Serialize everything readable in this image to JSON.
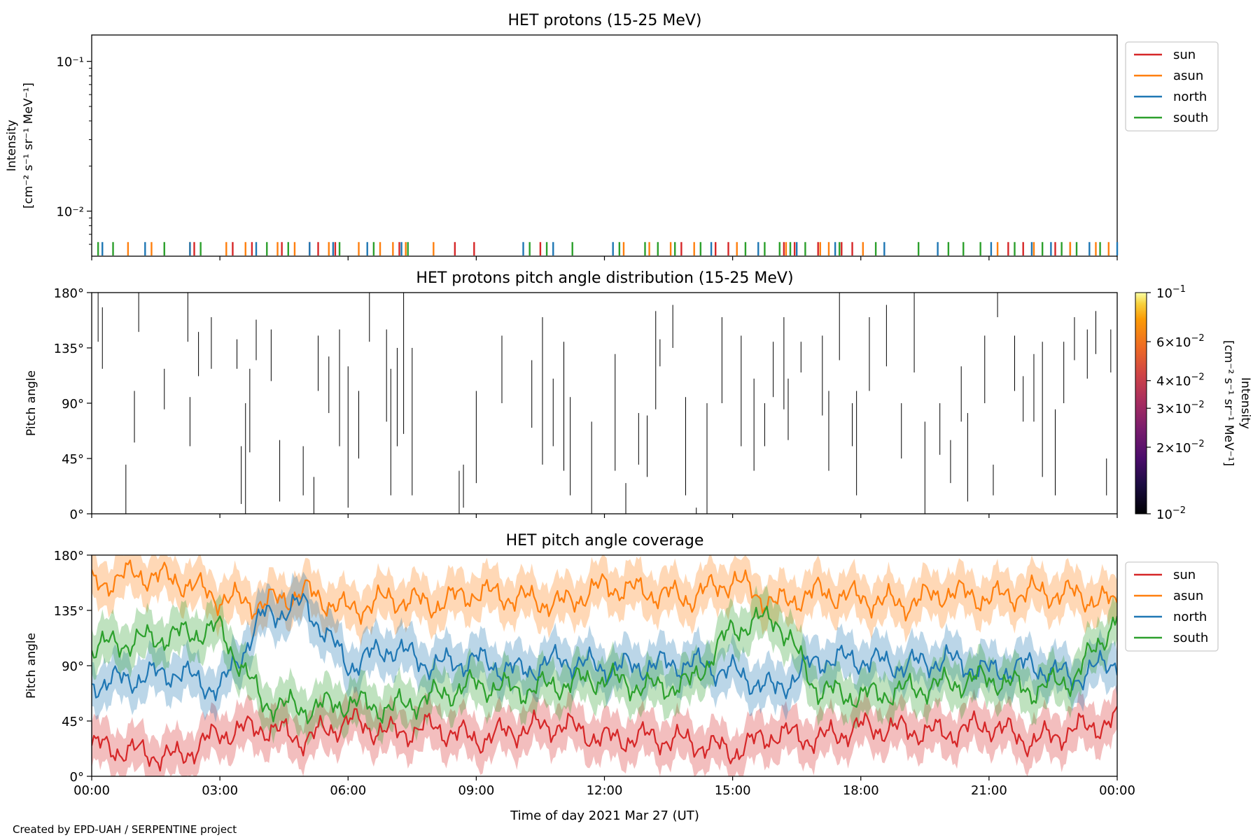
{
  "footer": "Created by EPD-UAH / SERPENTINE project",
  "chart_data": [
    {
      "type": "line",
      "title": "HET protons (15-25 MeV)",
      "ylabel": "Intensity",
      "ylabel2": "[cm⁻² s⁻¹ sr⁻¹ MeV⁻¹]",
      "yscale": "log",
      "ylim": [
        0.005,
        0.15
      ],
      "yticks": [
        "10⁻¹",
        "10⁻²"
      ],
      "ytick_values": [
        0.1,
        0.01
      ],
      "legend_position": "outside-right-top",
      "series": [
        {
          "name": "sun",
          "color": "#d62728",
          "marker_y": 0.0057,
          "x_hours": [
            2.4,
            3.3,
            3.75,
            4.45,
            5.1,
            5.3,
            5.7,
            7.2,
            8.5,
            8.95,
            10.5,
            13.8,
            14.6,
            14.9,
            16.2,
            16.45,
            17.0,
            17.55,
            17.8,
            21.45,
            21.8,
            22.55,
            22.9
          ]
        },
        {
          "name": "asun",
          "color": "#ff7f0e",
          "marker_y": 0.0057,
          "x_hours": [
            0.85,
            1.4,
            2.3,
            3.15,
            3.6,
            4.35,
            4.75,
            5.55,
            6.25,
            6.75,
            7.05,
            7.35,
            8.0,
            12.45,
            13.05,
            13.55,
            14.1,
            15.1,
            16.25,
            17.05,
            17.25,
            18.05,
            21.2,
            22.05,
            22.9,
            23.5,
            23.8
          ]
        },
        {
          "name": "north",
          "color": "#1f77b4",
          "marker_y": 0.0057,
          "x_hours": [
            0.25,
            1.25,
            2.3,
            3.85,
            5.1,
            5.65,
            6.45,
            7.25,
            10.1,
            10.8,
            12.2,
            14.5,
            15.6,
            16.5,
            17.4,
            18.55,
            19.8,
            21.05,
            22.0,
            22.45,
            23.35,
            24.0
          ]
        },
        {
          "name": "south",
          "color": "#2ca02c",
          "marker_y": 0.0057,
          "x_hours": [
            0.15,
            0.5,
            1.7,
            2.55,
            4.1,
            4.6,
            5.8,
            6.6,
            7.4,
            10.25,
            10.65,
            11.25,
            12.35,
            12.95,
            13.25,
            13.65,
            14.25,
            15.3,
            15.75,
            16.1,
            16.35,
            16.7,
            17.5,
            18.35,
            19.35,
            20.05,
            20.4,
            20.8,
            21.6,
            22.25,
            22.7,
            23.05,
            23.6
          ]
        }
      ]
    },
    {
      "type": "heatmap",
      "title": "HET protons pitch angle distribution (15-25 MeV)",
      "ylabel": "Pitch angle",
      "ylim": [
        0,
        180
      ],
      "yticks": [
        "0°",
        "45°",
        "90°",
        "135°",
        "180°"
      ],
      "ytick_values": [
        0,
        45,
        90,
        135,
        180
      ],
      "colorbar": {
        "colormap": "inferno",
        "scale": "log",
        "range": [
          0.01,
          0.1
        ],
        "label": "Intensity",
        "label2": "[cm⁻² s⁻¹ sr⁻¹ MeV⁻¹]",
        "ticks": [
          {
            "value": 0.1,
            "mant": "",
            "exp": "−1"
          },
          {
            "value": 0.06,
            "mant": "6",
            "exp": "−2"
          },
          {
            "value": 0.04,
            "mant": "4",
            "exp": "−2"
          },
          {
            "value": 0.03,
            "mant": "3",
            "exp": "−2"
          },
          {
            "value": 0.02,
            "mant": "2",
            "exp": "−2"
          },
          {
            "value": 0.01,
            "mant": "",
            "exp": "−2"
          }
        ]
      },
      "segments_note": "x in hours of day, y0/y1 pitch angle in degrees",
      "segments": [
        [
          0.15,
          180,
          140
        ],
        [
          0.25,
          168,
          118
        ],
        [
          0.8,
          40,
          0
        ],
        [
          1.0,
          100,
          58
        ],
        [
          1.1,
          180,
          148
        ],
        [
          1.7,
          118,
          85
        ],
        [
          2.25,
          180,
          140
        ],
        [
          2.3,
          95,
          55
        ],
        [
          2.5,
          148,
          112
        ],
        [
          2.8,
          160,
          118
        ],
        [
          3.4,
          142,
          118
        ],
        [
          3.5,
          55,
          8
        ],
        [
          3.6,
          90,
          0
        ],
        [
          3.7,
          118,
          50
        ],
        [
          3.85,
          158,
          125
        ],
        [
          4.2,
          150,
          108
        ],
        [
          4.4,
          60,
          10
        ],
        [
          4.95,
          55,
          15
        ],
        [
          5.2,
          30,
          0
        ],
        [
          5.3,
          145,
          100
        ],
        [
          5.55,
          128,
          82
        ],
        [
          5.8,
          150,
          55
        ],
        [
          6.0,
          120,
          5
        ],
        [
          6.25,
          100,
          45
        ],
        [
          6.5,
          180,
          140
        ],
        [
          6.9,
          150,
          75
        ],
        [
          7.0,
          118,
          15
        ],
        [
          7.15,
          135,
          55
        ],
        [
          7.3,
          180,
          65
        ],
        [
          7.5,
          135,
          15
        ],
        [
          8.6,
          35,
          0
        ],
        [
          8.7,
          40,
          5
        ],
        [
          9.0,
          100,
          25
        ],
        [
          9.6,
          145,
          90
        ],
        [
          10.3,
          125,
          70
        ],
        [
          10.55,
          160,
          40
        ],
        [
          10.8,
          110,
          55
        ],
        [
          11.05,
          140,
          35
        ],
        [
          11.2,
          95,
          15
        ],
        [
          11.7,
          75,
          0
        ],
        [
          12.25,
          130,
          35
        ],
        [
          12.5,
          25,
          0
        ],
        [
          12.8,
          82,
          40
        ],
        [
          13.0,
          80,
          30
        ],
        [
          13.2,
          165,
          85
        ],
        [
          13.3,
          142,
          120
        ],
        [
          13.6,
          170,
          135
        ],
        [
          13.9,
          95,
          15
        ],
        [
          14.15,
          5,
          0
        ],
        [
          14.4,
          90,
          0
        ],
        [
          14.75,
          160,
          90
        ],
        [
          15.2,
          145,
          55
        ],
        [
          15.5,
          110,
          35
        ],
        [
          15.75,
          90,
          55
        ],
        [
          15.95,
          140,
          95
        ],
        [
          16.2,
          160,
          85
        ],
        [
          16.3,
          110,
          60
        ],
        [
          16.6,
          140,
          115
        ],
        [
          17.1,
          145,
          80
        ],
        [
          17.25,
          100,
          35
        ],
        [
          17.5,
          180,
          125
        ],
        [
          17.8,
          90,
          55
        ],
        [
          17.9,
          100,
          15
        ],
        [
          18.2,
          160,
          100
        ],
        [
          18.6,
          170,
          120
        ],
        [
          18.95,
          90,
          45
        ],
        [
          19.25,
          180,
          115
        ],
        [
          19.5,
          75,
          0
        ],
        [
          19.85,
          90,
          48
        ],
        [
          20.1,
          60,
          25
        ],
        [
          20.35,
          120,
          75
        ],
        [
          20.5,
          82,
          10
        ],
        [
          20.9,
          145,
          90
        ],
        [
          21.1,
          40,
          15
        ],
        [
          21.2,
          180,
          160
        ],
        [
          21.6,
          145,
          100
        ],
        [
          21.8,
          112,
          75
        ],
        [
          22.05,
          130,
          75
        ],
        [
          22.25,
          140,
          30
        ],
        [
          22.55,
          85,
          15
        ],
        [
          22.75,
          140,
          90
        ],
        [
          23.0,
          160,
          125
        ],
        [
          23.3,
          150,
          110
        ],
        [
          23.5,
          165,
          130
        ],
        [
          23.75,
          45,
          15
        ],
        [
          23.85,
          150,
          115
        ],
        [
          24.0,
          175,
          140
        ]
      ]
    },
    {
      "type": "line",
      "title": "HET pitch angle coverage",
      "ylabel": "Pitch angle",
      "xlabel": "Time of day 2021 Mar 27 (UT)",
      "ylim": [
        0,
        180
      ],
      "yticks": [
        "0°",
        "45°",
        "90°",
        "135°",
        "180°"
      ],
      "ytick_values": [
        0,
        45,
        90,
        135,
        180
      ],
      "xlim_hours": [
        0,
        24
      ],
      "xticks": [
        "00:00",
        "03:00",
        "06:00",
        "09:00",
        "12:00",
        "15:00",
        "18:00",
        "21:00",
        "00:00"
      ],
      "xtick_hours": [
        0,
        3,
        6,
        9,
        12,
        15,
        18,
        21,
        24
      ],
      "band_halfwidth_deg": 18,
      "legend_position": "outside-right-top",
      "series": [
        {
          "name": "sun",
          "color": "#d62728",
          "x_hours": [
            0,
            1,
            2,
            3,
            4,
            5,
            6,
            7,
            8,
            9,
            10,
            11,
            12,
            13,
            14,
            15,
            16,
            17,
            18,
            19,
            20,
            21,
            22,
            23,
            24
          ],
          "values": [
            25,
            20,
            15,
            35,
            40,
            30,
            45,
            35,
            40,
            30,
            38,
            42,
            30,
            32,
            28,
            20,
            35,
            30,
            40,
            38,
            35,
            42,
            28,
            38,
            45
          ]
        },
        {
          "name": "asun",
          "color": "#ff7f0e",
          "x_hours": [
            0,
            1,
            2,
            3,
            4,
            5,
            6,
            7,
            8,
            9,
            10,
            11,
            12,
            13,
            14,
            15,
            16,
            17,
            18,
            19,
            20,
            21,
            22,
            23,
            24
          ],
          "values": [
            155,
            165,
            160,
            145,
            140,
            150,
            135,
            145,
            140,
            150,
            145,
            140,
            155,
            150,
            145,
            160,
            140,
            150,
            145,
            140,
            150,
            145,
            150,
            148,
            140
          ]
        },
        {
          "name": "north",
          "color": "#1f77b4",
          "x_hours": [
            0,
            1,
            2,
            3,
            4,
            5,
            6,
            7,
            8,
            9,
            10,
            11,
            12,
            13,
            14,
            15,
            16,
            17,
            18,
            19,
            20,
            21,
            22,
            23,
            24
          ],
          "values": [
            75,
            80,
            85,
            70,
            130,
            140,
            90,
            105,
            90,
            95,
            85,
            95,
            88,
            90,
            92,
            85,
            70,
            95,
            95,
            90,
            95,
            85,
            90,
            80,
            95
          ]
        },
        {
          "name": "south",
          "color": "#2ca02c",
          "x_hours": [
            0,
            1,
            2,
            3,
            4,
            5,
            6,
            7,
            8,
            9,
            10,
            11,
            12,
            13,
            14,
            15,
            16,
            17,
            18,
            19,
            20,
            21,
            22,
            23,
            24
          ],
          "values": [
            105,
            110,
            115,
            120,
            60,
            55,
            60,
            55,
            65,
            75,
            70,
            75,
            80,
            72,
            75,
            120,
            130,
            70,
            65,
            70,
            75,
            80,
            70,
            80,
            130
          ]
        }
      ]
    }
  ]
}
